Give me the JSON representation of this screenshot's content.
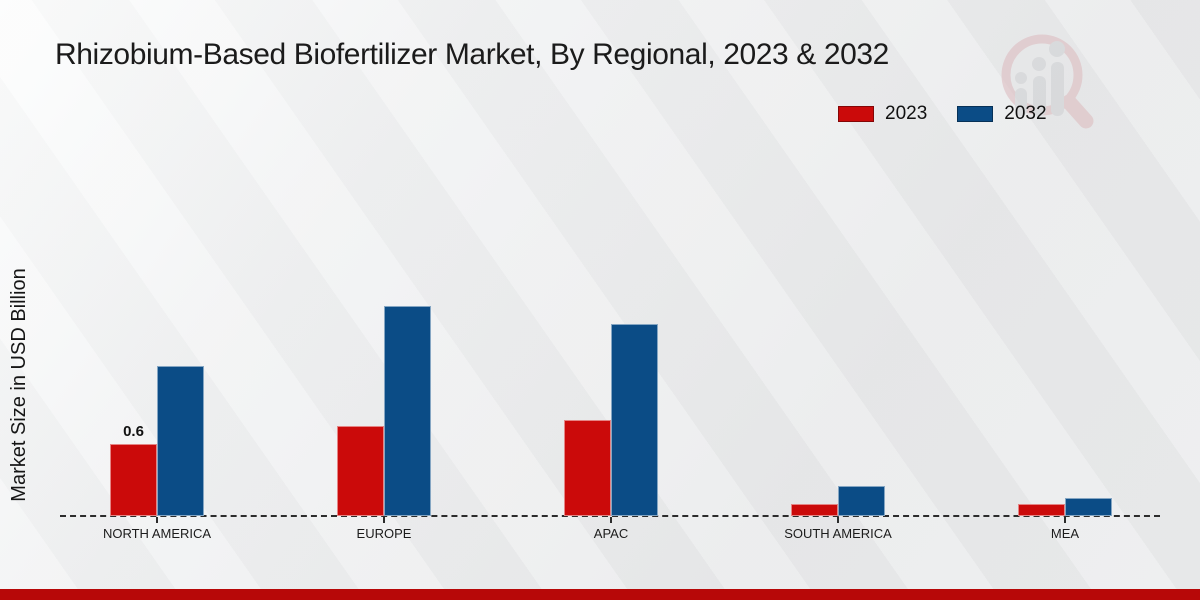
{
  "chart_data": {
    "type": "bar",
    "title": "Rhizobium-Based Biofertilizer Market, By Regional, 2023 & 2032",
    "xlabel": "",
    "ylabel": "Market Size in USD Billion",
    "units": "USD Billion",
    "categories": [
      "NORTH AMERICA",
      "EUROPE",
      "APAC",
      "SOUTH AMERICA",
      "MEA"
    ],
    "series": [
      {
        "name": "2023",
        "color": "#cb0a0a",
        "values": [
          0.6,
          0.75,
          0.8,
          0.1,
          0.1
        ]
      },
      {
        "name": "2032",
        "color": "#0b4c86",
        "values": [
          1.25,
          1.75,
          1.6,
          0.25,
          0.15
        ]
      }
    ],
    "annotations": [
      {
        "series": "2023",
        "category": "NORTH AMERICA",
        "text": "0.6"
      }
    ],
    "ylim": [
      0,
      2
    ],
    "grid": false,
    "y_axis_ticks_visible": false,
    "legend_position": "top-right",
    "baseline_style": "dashed"
  },
  "footer": {
    "color": "#b70808"
  },
  "watermark": {
    "icon": "magnifier-bar-chart-logo"
  }
}
